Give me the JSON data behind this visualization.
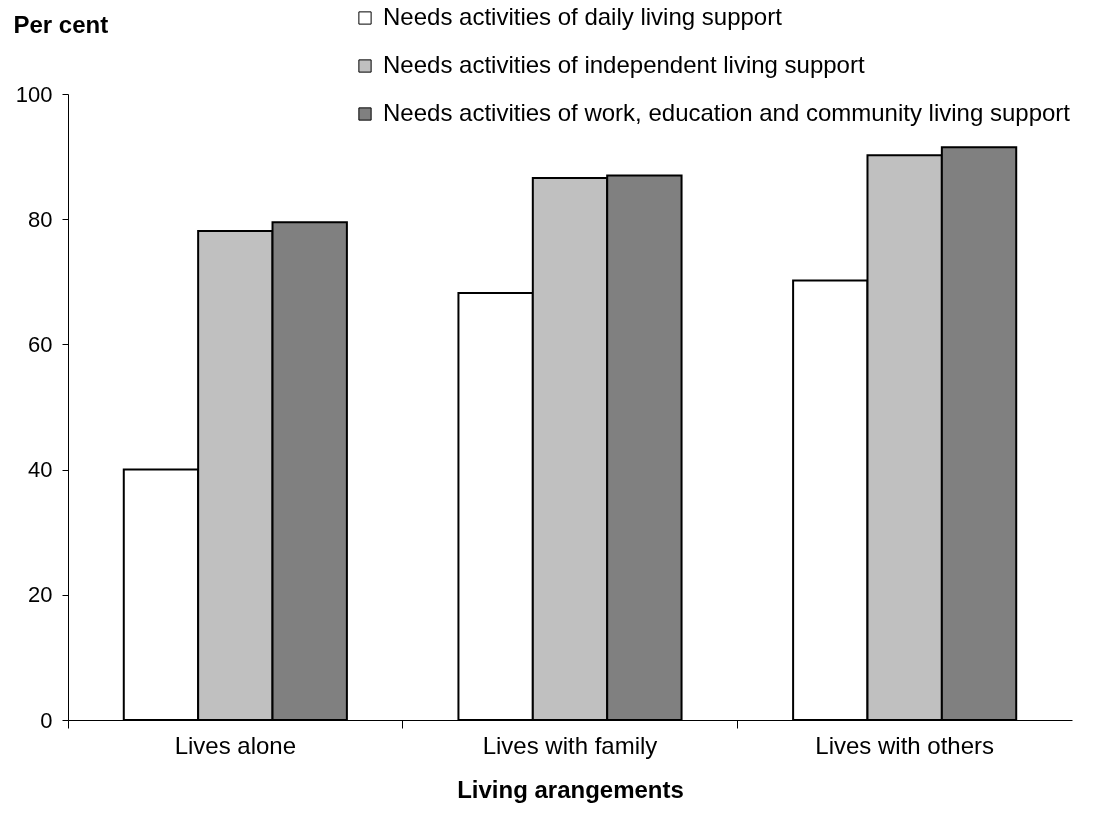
{
  "chart_data": {
    "type": "bar",
    "xlabel": "Living arangements",
    "ylabel": "Per cent",
    "categories": [
      "Lives alone",
      "Lives with family",
      "Lives with others"
    ],
    "series": [
      {
        "name": "Needs activities of daily living support",
        "color": "#ffffff",
        "values": [
          40,
          68.2,
          70.2
        ]
      },
      {
        "name": "Needs activities of independent living support",
        "color": "#c0c0c0",
        "values": [
          78.1,
          86.6,
          90.2
        ]
      },
      {
        "name": "Needs activities of work, education and community living support",
        "color": "#808080",
        "values": [
          79.5,
          87.0,
          91.5
        ]
      }
    ],
    "ylim": [
      0,
      100
    ],
    "yticks": [
      0,
      20,
      40,
      60,
      80,
      100
    ],
    "grid": false,
    "legend": "top right"
  }
}
